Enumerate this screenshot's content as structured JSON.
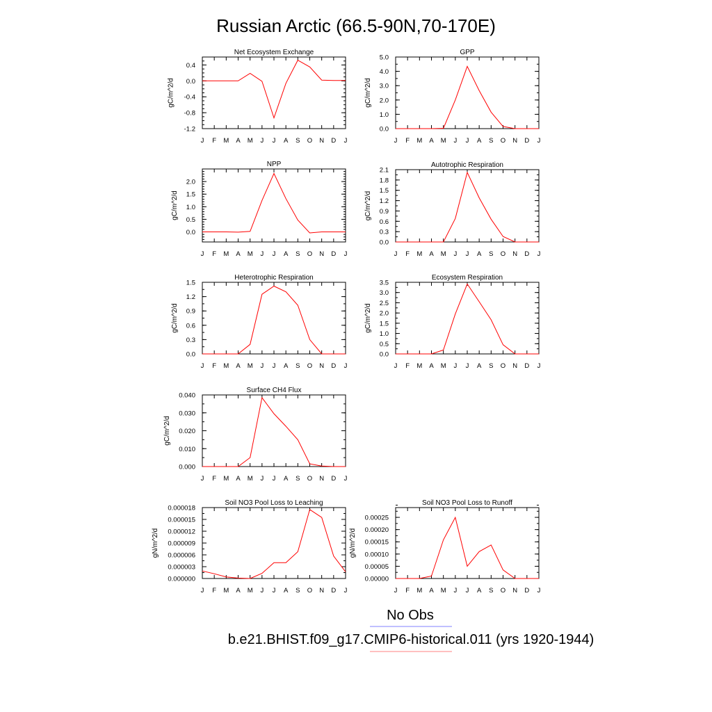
{
  "title": "Russian Arctic (66.5-90N,70-170E)",
  "months": [
    "J",
    "F",
    "M",
    "A",
    "M",
    "J",
    "J",
    "A",
    "S",
    "O",
    "N",
    "D",
    "J"
  ],
  "legend": [
    {
      "label": "No Obs",
      "color": "#8080ff"
    },
    {
      "label": "b.e21.BHIST.f09_g17.CMIP6-historical.011 (yrs 1920-1944)",
      "color": "#ff8080"
    }
  ],
  "line_color": "#ff0000",
  "chart_data": [
    {
      "type": "line",
      "title": "Net Ecosystem Exchange",
      "ylabel": "gC/m^2/d",
      "ylim": [
        -1.2,
        0.6
      ],
      "yticks": [
        -1.2,
        -0.8,
        -0.4,
        0.0,
        0.4
      ],
      "ytick_labels": [
        "-1.2",
        "-0.8",
        "-0.4",
        "0.0",
        "0.4"
      ],
      "yminor": 0.1,
      "values": [
        0.0,
        0.0,
        0.0,
        0.0,
        0.19,
        -0.01,
        -0.93,
        -0.06,
        0.52,
        0.35,
        0.02,
        0.01,
        0.01
      ]
    },
    {
      "type": "line",
      "title": "GPP",
      "ylabel": "gC/m^2/d",
      "ylim": [
        0,
        5
      ],
      "yticks": [
        0,
        1,
        2,
        3,
        4,
        5
      ],
      "ytick_labels": [
        "0.0",
        "1.0",
        "2.0",
        "3.0",
        "4.0",
        "5.0"
      ],
      "yminor": 0.5,
      "values": [
        0.0,
        0.0,
        0.0,
        0.0,
        0.02,
        2.0,
        4.35,
        2.65,
        1.15,
        0.15,
        0.0,
        0.0,
        0.0
      ]
    },
    {
      "type": "line",
      "title": "NPP",
      "ylabel": "gC/m^2/d",
      "ylim": [
        -0.4,
        2.5
      ],
      "yticks": [
        0.0,
        0.5,
        1.0,
        1.5,
        2.0
      ],
      "ytick_labels": [
        "0.0",
        "0.5",
        "1.0",
        "1.5",
        "2.0"
      ],
      "yminor": 0.1,
      "values": [
        0.0,
        0.0,
        0.0,
        -0.01,
        0.02,
        1.25,
        2.32,
        1.32,
        0.47,
        -0.04,
        0.0,
        0.0,
        0.0
      ]
    },
    {
      "type": "line",
      "title": "Autotrophic Respiration",
      "ylabel": "gC/m^2/d",
      "ylim": [
        0,
        2.1
      ],
      "yticks": [
        0.0,
        0.3,
        0.6,
        0.9,
        1.2,
        1.5,
        1.8,
        2.1
      ],
      "ytick_labels": [
        "0.0",
        "0.3",
        "0.6",
        "0.9",
        "1.2",
        "1.5",
        "1.8",
        "2.1"
      ],
      "yminor": 0.15,
      "values": [
        0.0,
        0.0,
        0.0,
        0.0,
        0.0,
        0.68,
        2.02,
        1.28,
        0.66,
        0.16,
        0.0,
        0.0,
        0.0
      ]
    },
    {
      "type": "line",
      "title": "Heterotrophic Respiration",
      "ylabel": "gC/m^2/d",
      "ylim": [
        0,
        1.5
      ],
      "yticks": [
        0.0,
        0.3,
        0.6,
        0.9,
        1.2,
        1.5
      ],
      "ytick_labels": [
        "0.0",
        "0.3",
        "0.6",
        "0.9",
        "1.2",
        "1.5"
      ],
      "yminor": 0.15,
      "values": [
        0.0,
        0.0,
        0.0,
        0.0,
        0.2,
        1.25,
        1.42,
        1.3,
        1.02,
        0.3,
        0.0,
        0.0,
        0.0
      ]
    },
    {
      "type": "line",
      "title": "Ecosystem Respiration",
      "ylabel": "gC/m^2/d",
      "ylim": [
        0,
        3.5
      ],
      "yticks": [
        0.0,
        0.5,
        1.0,
        1.5,
        2.0,
        2.5,
        3.0,
        3.5
      ],
      "ytick_labels": [
        "0.0",
        "0.5",
        "1.0",
        "1.5",
        "2.0",
        "2.5",
        "3.0",
        "3.5"
      ],
      "yminor": 0.25,
      "values": [
        0.0,
        0.0,
        0.0,
        0.0,
        0.19,
        1.95,
        3.42,
        2.55,
        1.67,
        0.45,
        0.0,
        0.0,
        0.0
      ]
    },
    {
      "type": "line",
      "title": "Surface CH4 Flux",
      "ylabel": "gC/m^2/d",
      "ylim": [
        0,
        0.04
      ],
      "yticks": [
        0.0,
        0.01,
        0.02,
        0.03,
        0.04
      ],
      "ytick_labels": [
        "0.000",
        "0.010",
        "0.020",
        "0.030",
        "0.040"
      ],
      "yminor": 0.005,
      "values": [
        0.0,
        0.0,
        0.0,
        0.0,
        0.005,
        0.0385,
        0.0295,
        0.0225,
        0.015,
        0.0015,
        0.0003,
        0.0,
        0.0
      ]
    },
    {
      "type": "line",
      "title": "Soil NO3 Pool Loss to Leaching",
      "ylabel": "gN/m^2/d",
      "ylim": [
        0,
        1.8e-05
      ],
      "yticks": [
        0,
        3e-06,
        6e-06,
        9e-06,
        1.2e-05,
        1.5e-05,
        1.8e-05
      ],
      "ytick_labels": [
        "0.000000",
        "0.000003",
        "0.000006",
        "0.000009",
        "0.000012",
        "0.000015",
        "0.000018"
      ],
      "yminor": 1.5e-06,
      "values": [
        1.9e-06,
        1.2e-06,
        4e-07,
        1e-07,
        0.0,
        1.3e-06,
        4e-06,
        4e-06,
        6.8e-06,
        1.75e-05,
        1.55e-05,
        5.7e-06,
        1.7e-06
      ]
    },
    {
      "type": "line",
      "title": "Soil NO3 Pool Loss to Runoff",
      "ylabel": "gN/m^2/d",
      "ylim": [
        0,
        0.00029
      ],
      "yticks": [
        0,
        5e-05,
        0.0001,
        0.00015,
        0.0002,
        0.00025
      ],
      "ytick_labels": [
        "0.00000",
        "0.00005",
        "0.00010",
        "0.00015",
        "0.00020",
        "0.00025"
      ],
      "yminor": 2.5e-05,
      "values": [
        0.0,
        0.0,
        0.0,
        1e-05,
        0.000158,
        0.00025,
        5e-05,
        0.00011,
        0.000137,
        3.5e-05,
        0.0,
        0.0,
        0.0
      ]
    }
  ]
}
